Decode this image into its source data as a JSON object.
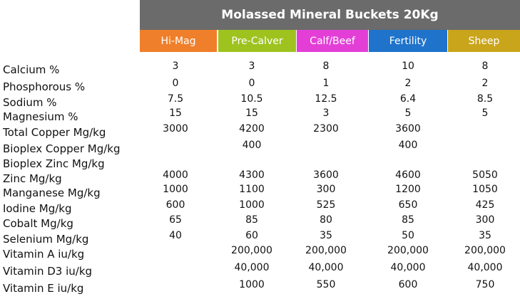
{
  "title": "Molassed Mineral Buckets 20Kg",
  "columns": [
    {
      "label": "Hi-Mag",
      "color": "#ef7f2a"
    },
    {
      "label": "Pre-Calver",
      "color": "#9ec31f"
    },
    {
      "label": "Calf/Beef",
      "color": "#e33fd7"
    },
    {
      "label": "Fertility",
      "color": "#1f73cb"
    },
    {
      "label": "Sheep",
      "color": "#c9a51c"
    }
  ],
  "rows": [
    {
      "label": "Calcium %",
      "values": [
        "3",
        "3",
        "8",
        "10",
        "8"
      ]
    },
    {
      "label": "Phosphorous %",
      "values": [
        "0",
        "0",
        "1",
        "2",
        "2"
      ]
    },
    {
      "label": "Sodium %",
      "values": [
        "7.5",
        "10.5",
        "12.5",
        "6.4",
        "8.5"
      ]
    },
    {
      "label": "Magnesium %",
      "values": [
        "15",
        "15",
        "3",
        "5",
        "5"
      ]
    },
    {
      "label": "Total Copper Mg/kg",
      "values": [
        "3000",
        "4200",
        "2300",
        "3600",
        ""
      ]
    },
    {
      "label": "Bioplex Copper Mg/kg",
      "values": [
        "",
        "400",
        "",
        "400",
        ""
      ]
    },
    {
      "label": "Bioplex Zinc Mg/kg",
      "values": [
        "",
        "",
        "",
        "",
        ""
      ]
    },
    {
      "label": "Zinc Mg/kg",
      "values": [
        "4000",
        "4300",
        "3600",
        "4600",
        "5050"
      ]
    },
    {
      "label": "Manganese Mg/kg",
      "values": [
        "1000",
        "1100",
        "300",
        "1200",
        "1050"
      ]
    },
    {
      "label": "Iodine Mg/kg",
      "values": [
        "600",
        "1000",
        "525",
        "650",
        "425"
      ]
    },
    {
      "label": "Cobalt Mg/kg",
      "values": [
        "65",
        "85",
        "80",
        "85",
        "300"
      ]
    },
    {
      "label": "Selenium Mg/kg",
      "values": [
        "40",
        "60",
        "35",
        "50",
        "35"
      ]
    },
    {
      "label": "Vitamin A iu/kg",
      "values": [
        "",
        "200,000",
        "200,000",
        "200,000",
        "200,000"
      ]
    },
    {
      "label": "Vitamin D3 iu/kg",
      "values": [
        "",
        "40,000",
        "40,000",
        "40,000",
        "40,000"
      ]
    },
    {
      "label": "Vitamin E iu/kg",
      "values": [
        "",
        "1000",
        "550",
        "600",
        "750"
      ]
    }
  ]
}
